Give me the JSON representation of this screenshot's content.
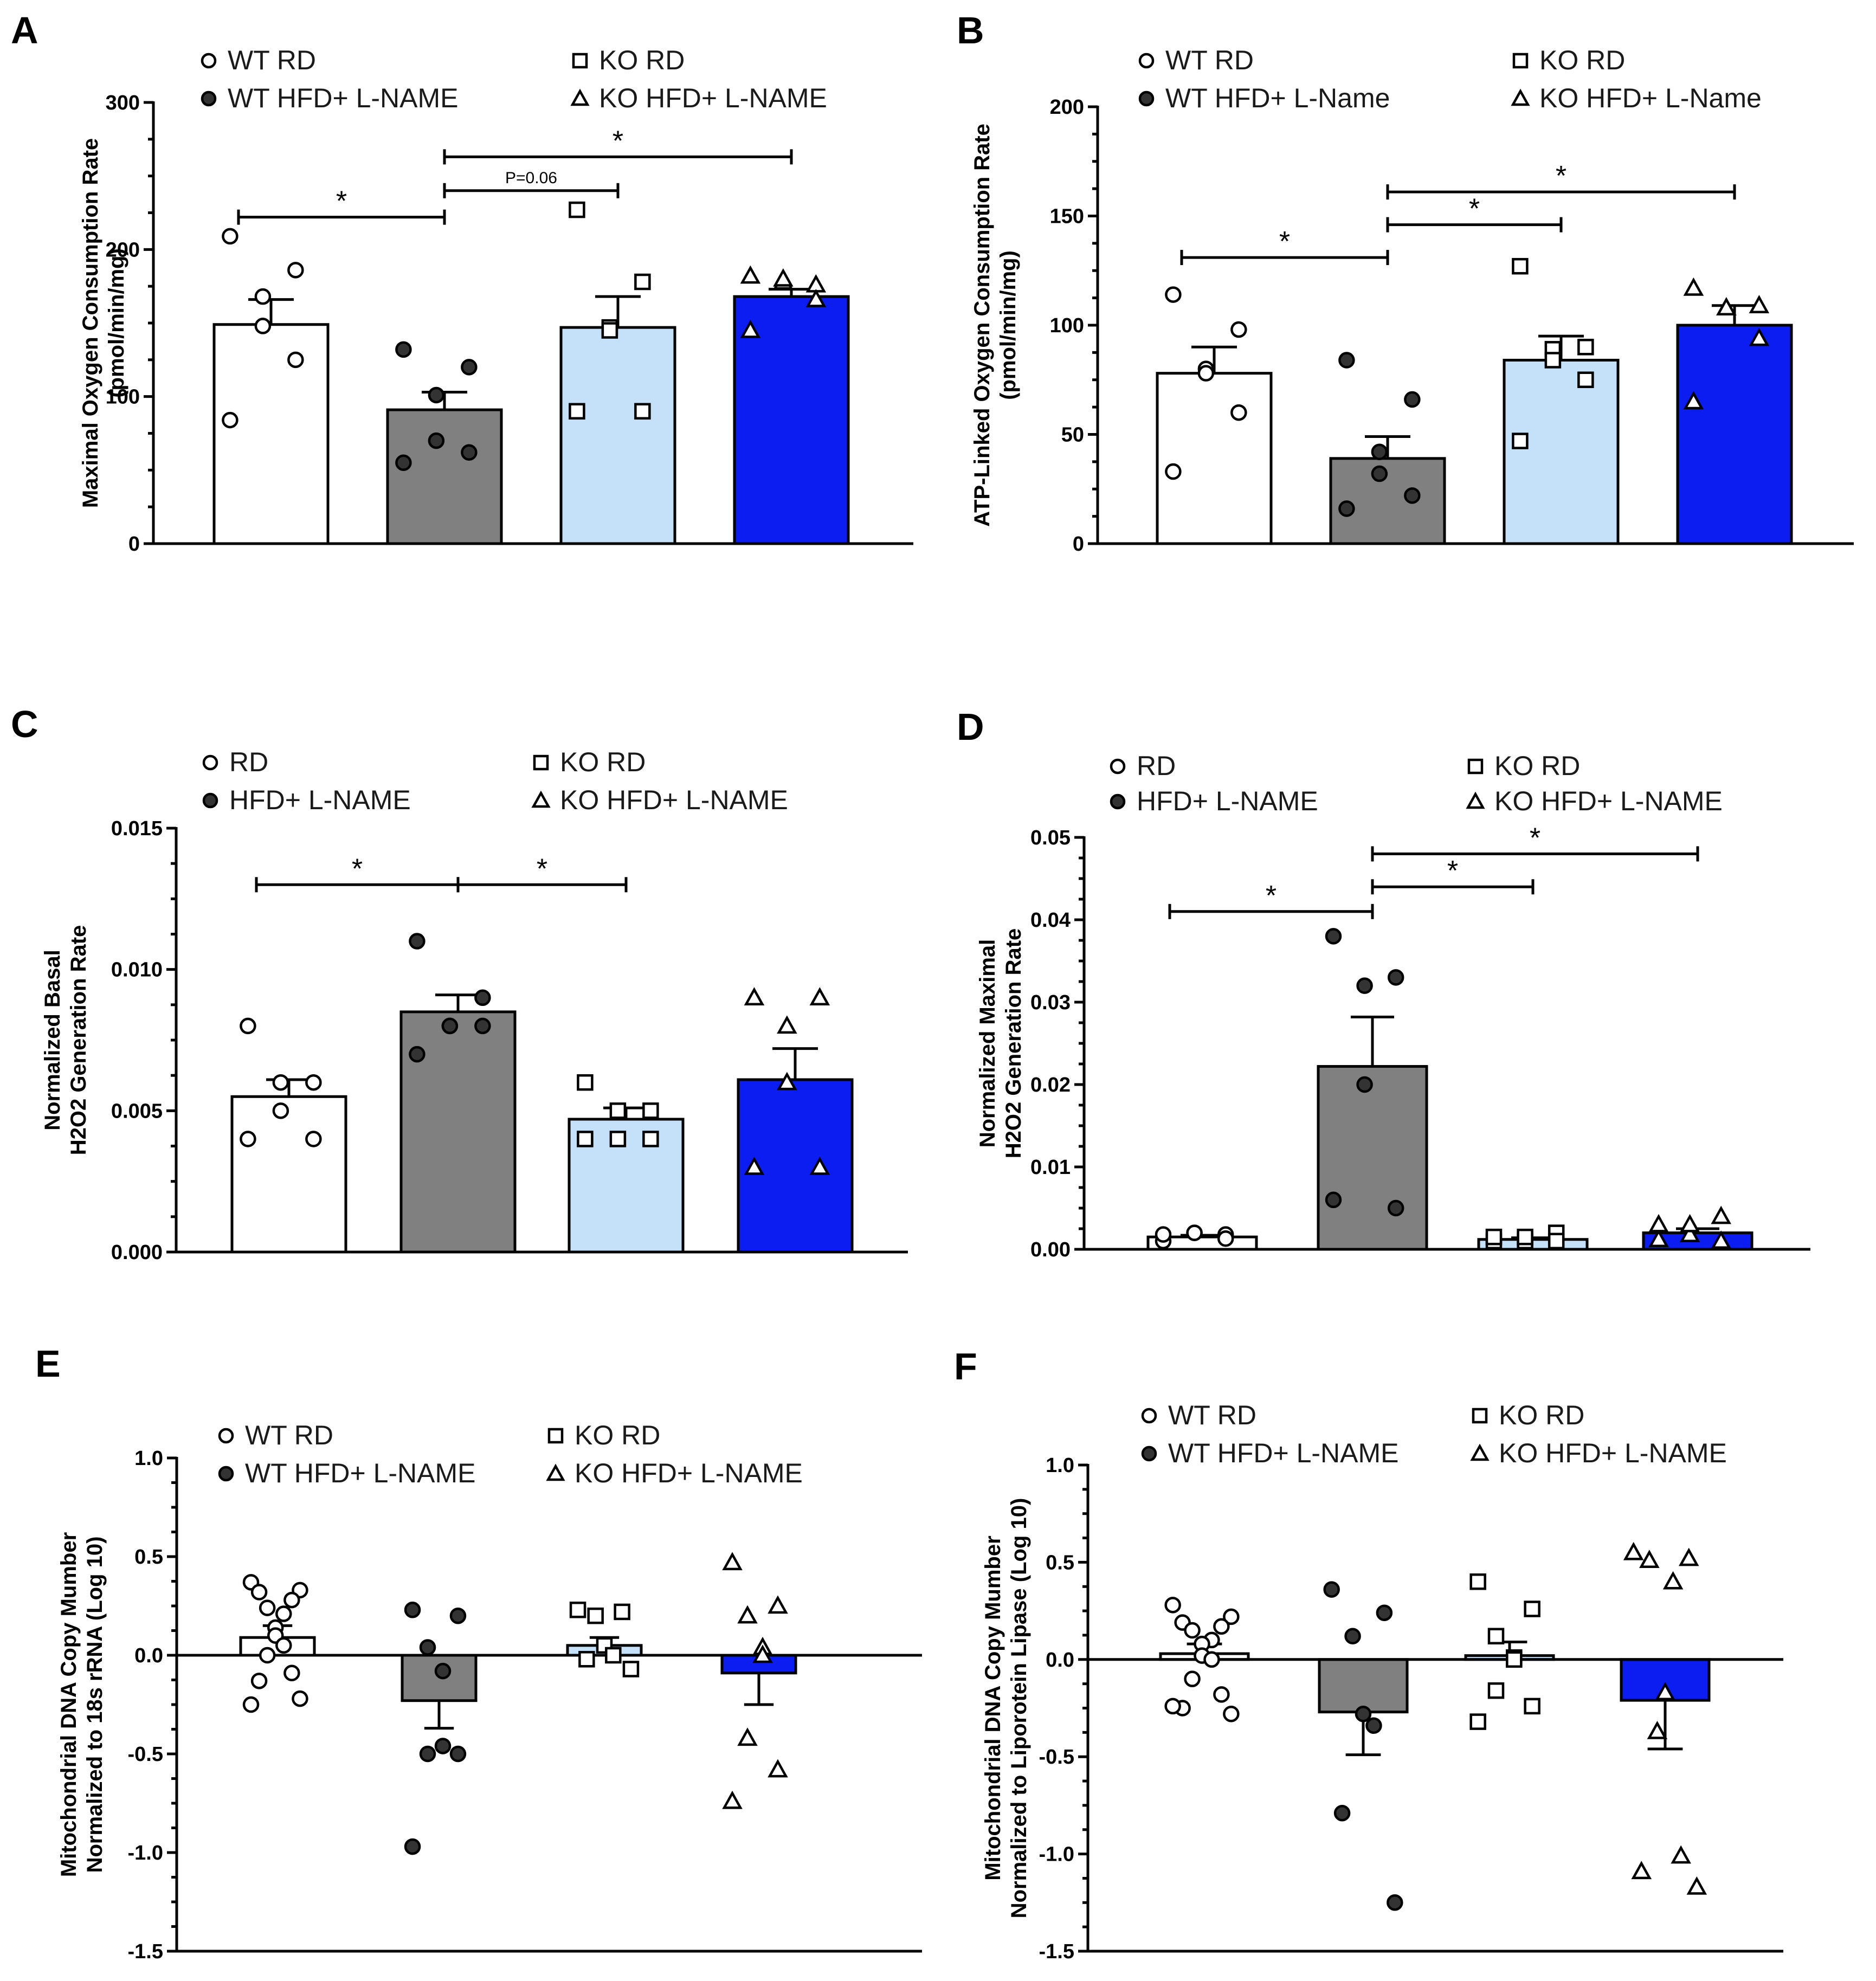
{
  "groups": [
    {
      "key": "wt_rd",
      "fill": "#ffffff",
      "marker": "circle",
      "marker_fill": "#ffffff"
    },
    {
      "key": "wt_hfd",
      "fill": "#808080",
      "marker": "circle",
      "marker_fill": "#333333"
    },
    {
      "key": "ko_rd",
      "fill": "#c5e0f9",
      "marker": "square",
      "marker_fill": "#ffffff"
    },
    {
      "key": "ko_hfd",
      "fill": "#0b1df0",
      "marker": "triangle",
      "marker_fill": "#ffffff"
    }
  ],
  "chart_data": [
    {
      "panel": "A",
      "type": "bar",
      "ylabel": [
        "Maximal Oxygen Consumption Rate",
        "(pmol/min/mg)"
      ],
      "ylim": [
        0,
        300
      ],
      "yticks": [
        0,
        100,
        200,
        300
      ],
      "tick_labels": [
        "0",
        "100",
        "200",
        "300"
      ],
      "legend": [
        "WT RD",
        "WT HFD+ L-NAME",
        "KO RD",
        "KO HFD+ L-NAME"
      ],
      "series": [
        {
          "name": "WT RD",
          "mean": 149,
          "sem": 17,
          "points": [
            209,
            186,
            168,
            148,
            125,
            84
          ]
        },
        {
          "name": "WT HFD+ L-NAME",
          "mean": 91,
          "sem": 12,
          "points": [
            132,
            120,
            101,
            70,
            62,
            55
          ]
        },
        {
          "name": "KO RD",
          "mean": 147,
          "sem": 21,
          "points": [
            227,
            178,
            147,
            145,
            90,
            90
          ]
        },
        {
          "name": "KO HFD+ L-NAME",
          "mean": 168,
          "sem": 5,
          "points": [
            182,
            176,
            178,
            180,
            166,
            145
          ]
        }
      ],
      "significance": [
        {
          "from": 0,
          "to": 1,
          "y": 222,
          "label": "*"
        },
        {
          "from": 1,
          "to": 2,
          "y": 240,
          "label": "P=0.06"
        },
        {
          "from": 1,
          "to": 3,
          "y": 263,
          "label": "*"
        }
      ]
    },
    {
      "panel": "B",
      "type": "bar",
      "ylabel": [
        "ATP-Linked Oxygen Consumption Rate",
        "(pmol/min/mg)"
      ],
      "ylim": [
        0,
        200
      ],
      "yticks": [
        0,
        50,
        100,
        150,
        200
      ],
      "tick_labels": [
        "0",
        "50",
        "100",
        "150",
        "200"
      ],
      "legend": [
        "WT RD",
        "WT HFD+ L-Name",
        "KO RD",
        "KO HFD+ L-Name"
      ],
      "series": [
        {
          "name": "WT RD",
          "mean": 78,
          "sem": 12,
          "points": [
            114,
            98,
            80,
            78,
            60,
            33
          ]
        },
        {
          "name": "WT HFD+ L-Name",
          "mean": 39,
          "sem": 10,
          "points": [
            84,
            66,
            42,
            32,
            22,
            16
          ]
        },
        {
          "name": "KO RD",
          "mean": 84,
          "sem": 11,
          "points": [
            127,
            90,
            89,
            84,
            75,
            47
          ]
        },
        {
          "name": "KO HFD+ L-Name",
          "mean": 100,
          "sem": 9,
          "points": [
            117,
            109,
            108,
            108,
            94,
            65
          ]
        }
      ],
      "significance": [
        {
          "from": 0,
          "to": 1,
          "y": 131,
          "label": "*"
        },
        {
          "from": 1,
          "to": 2,
          "y": 146,
          "label": "*"
        },
        {
          "from": 1,
          "to": 3,
          "y": 161,
          "label": "*"
        }
      ]
    },
    {
      "panel": "C",
      "type": "bar",
      "ylabel": [
        "Normalized Basal",
        "H2O2 Generation Rate"
      ],
      "ylim": [
        0,
        0.015
      ],
      "yticks": [
        0,
        0.005,
        0.01,
        0.015
      ],
      "tick_labels": [
        "0.000",
        "0.005",
        "0.010",
        "0.015"
      ],
      "legend": [
        "RD",
        "HFD+ L-NAME",
        "KO RD",
        "KO HFD+ L-NAME"
      ],
      "series": [
        {
          "name": "RD",
          "mean": 0.0055,
          "sem": 0.0006,
          "points": [
            0.008,
            0.006,
            0.006,
            0.005,
            0.004,
            0.004
          ]
        },
        {
          "name": "HFD+ L-NAME",
          "mean": 0.0085,
          "sem": 0.0006,
          "points": [
            0.011,
            0.009,
            0.008,
            0.008,
            0.008,
            0.007
          ]
        },
        {
          "name": "KO RD",
          "mean": 0.0047,
          "sem": 0.0004,
          "points": [
            0.006,
            0.005,
            0.005,
            0.004,
            0.004,
            0.004
          ]
        },
        {
          "name": "KO HFD+ L-NAME",
          "mean": 0.0061,
          "sem": 0.0011,
          "points": [
            0.009,
            0.009,
            0.008,
            0.006,
            0.003,
            0.003
          ]
        }
      ],
      "significance": [
        {
          "from": 0,
          "to": 1,
          "y": 0.013,
          "label": "*"
        },
        {
          "from": 1,
          "to": 2,
          "y": 0.013,
          "label": "*"
        }
      ]
    },
    {
      "panel": "D",
      "type": "bar",
      "ylabel": [
        "Normalized Maximal",
        "H2O2 Generation Rate"
      ],
      "ylim": [
        0,
        0.05
      ],
      "yticks": [
        0,
        0.01,
        0.02,
        0.03,
        0.04,
        0.05
      ],
      "tick_labels": [
        "0.00",
        "0.01",
        "0.02",
        "0.03",
        "0.04",
        "0.05"
      ],
      "legend": [
        "RD",
        "HFD+ L-NAME",
        "KO RD",
        "KO HFD+ L-NAME"
      ],
      "series": [
        {
          "name": "RD",
          "mean": 0.0015,
          "sem": 0.0002,
          "points": [
            0.001,
            0.0018,
            0.002,
            0.002,
            0.0013,
            0.0018
          ]
        },
        {
          "name": "HFD+ L-NAME",
          "mean": 0.0222,
          "sem": 0.006,
          "points": [
            0.038,
            0.033,
            0.032,
            0.02,
            0.005,
            0.006
          ]
        },
        {
          "name": "KO RD",
          "mean": 0.0012,
          "sem": 0.0002,
          "points": [
            0.001,
            0.002,
            0.001,
            0.0015,
            0.001,
            0.0015
          ]
        },
        {
          "name": "KO HFD+ L-NAME",
          "mean": 0.002,
          "sem": 0.0005,
          "points": [
            0.0012,
            0.004,
            0.0018,
            0.003,
            0.001,
            0.003
          ]
        }
      ],
      "significance": [
        {
          "from": 0,
          "to": 1,
          "y": 0.041,
          "label": "*"
        },
        {
          "from": 1,
          "to": 2,
          "y": 0.044,
          "label": "*"
        },
        {
          "from": 1,
          "to": 3,
          "y": 0.048,
          "label": "*"
        }
      ]
    },
    {
      "panel": "E",
      "type": "bar",
      "ylabel": [
        "Mitochondrial DNA Copy Mumber",
        "Normalized to 18s rRNA (Log 10)"
      ],
      "ylim": [
        -1.5,
        1.0
      ],
      "yticks": [
        -1.5,
        -1.0,
        -0.5,
        0.0,
        0.5,
        1.0
      ],
      "tick_labels": [
        "-1.5",
        "-1.0",
        "-0.5",
        "0.0",
        "0.5",
        "1.0"
      ],
      "legend": [
        "WT RD",
        "WT HFD+ L-NAME",
        "KO RD",
        "KO HFD+ L-NAME"
      ],
      "series": [
        {
          "name": "WT RD",
          "mean": 0.09,
          "sem": 0.06,
          "points": [
            0.37,
            0.33,
            0.32,
            0.28,
            0.24,
            0.21,
            0.14,
            0.1,
            0.05,
            0.0,
            -0.09,
            -0.13,
            -0.22,
            -0.25
          ]
        },
        {
          "name": "WT HFD+ L-NAME",
          "mean": -0.23,
          "sem": 0.14,
          "points": [
            0.23,
            0.2,
            0.04,
            -0.08,
            -0.46,
            -0.5,
            -0.5,
            -0.97
          ]
        },
        {
          "name": "KO RD",
          "mean": 0.05,
          "sem": 0.04,
          "points": [
            0.23,
            0.22,
            0.2,
            0.05,
            0.0,
            -0.02,
            -0.07
          ]
        },
        {
          "name": "KO HFD+ L-NAME",
          "mean": -0.09,
          "sem": 0.16,
          "points": [
            0.47,
            0.25,
            0.2,
            0.04,
            0.0,
            -0.42,
            -0.58,
            -0.74
          ]
        }
      ],
      "significance": []
    },
    {
      "panel": "F",
      "type": "bar",
      "ylabel": [
        "Mitochondrial DNA Copy Mumber",
        "Normalized to Liporotein Lipase (Log 10)"
      ],
      "ylim": [
        -1.5,
        1.0
      ],
      "yticks": [
        -1.5,
        -1.0,
        -0.5,
        0.0,
        0.5,
        1.0
      ],
      "tick_labels": [
        "-1.5",
        "-1.0",
        "-0.5",
        "0.0",
        "0.5",
        "1.0"
      ],
      "legend": [
        "WT RD",
        "WT HFD+ L-NAME",
        "KO RD",
        "KO HFD+ L-NAME"
      ],
      "series": [
        {
          "name": "WT RD",
          "mean": 0.03,
          "sem": 0.05,
          "points": [
            0.28,
            0.22,
            0.19,
            0.17,
            0.15,
            0.1,
            0.08,
            0.02,
            0.0,
            -0.1,
            -0.18,
            -0.25,
            -0.28,
            -0.24
          ]
        },
        {
          "name": "WT HFD+ L-NAME",
          "mean": -0.27,
          "sem": 0.22,
          "points": [
            0.36,
            0.24,
            0.12,
            -0.28,
            -0.34,
            -0.79,
            -1.25
          ]
        },
        {
          "name": "KO RD",
          "mean": 0.02,
          "sem": 0.07,
          "points": [
            0.4,
            0.26,
            0.12,
            0.01,
            0.0,
            -0.16,
            -0.24,
            -0.32
          ]
        },
        {
          "name": "KO HFD+ L-NAME",
          "mean": -0.21,
          "sem": 0.25,
          "points": [
            0.55,
            0.52,
            0.51,
            0.4,
            -0.17,
            -0.37,
            -1.01,
            -1.09,
            -1.17
          ]
        }
      ],
      "significance": []
    }
  ]
}
